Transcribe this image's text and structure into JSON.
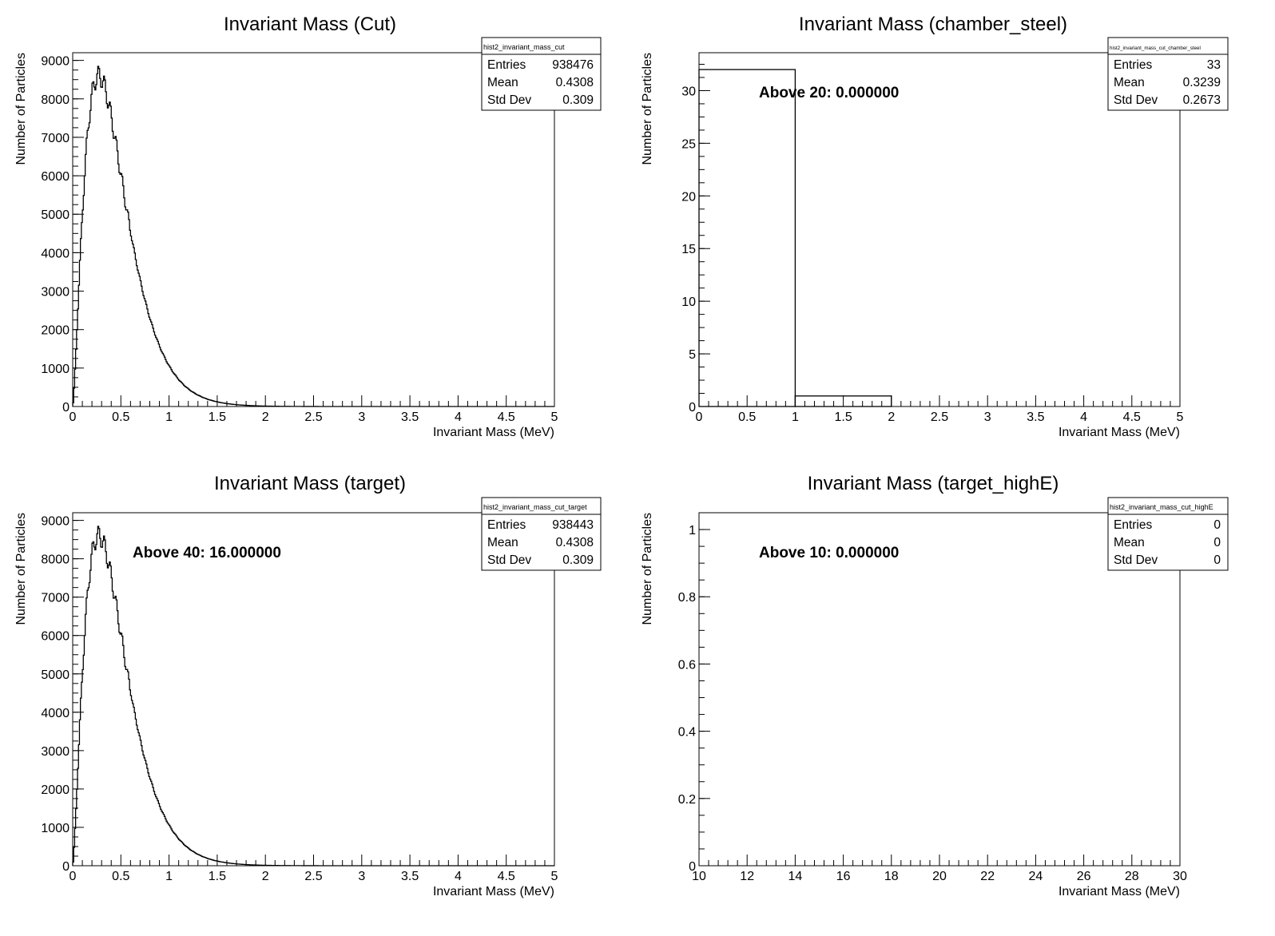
{
  "colors": {
    "line": "#000000",
    "background": "#ffffff"
  },
  "chart_data": [
    {
      "type": "histogram",
      "title": "Invariant Mass (Cut)",
      "xlabel": "Invariant Mass (MeV)",
      "ylabel": "Number of Particles",
      "xlim": [
        0,
        5
      ],
      "ylim": [
        0,
        9200
      ],
      "x_ticks": [
        "0",
        "0.5",
        "1",
        "1.5",
        "2",
        "2.5",
        "3",
        "3.5",
        "4",
        "4.5",
        "5"
      ],
      "y_ticks": [
        "0",
        "1000",
        "2000",
        "3000",
        "4000",
        "5000",
        "6000",
        "7000",
        "8000",
        "9000"
      ],
      "stats": {
        "name": "hist2_invariant_mass_cut",
        "rows": [
          {
            "label": "Entries",
            "value": "938476"
          },
          {
            "label": "Mean",
            "value": "0.4308"
          },
          {
            "label": "Std Dev",
            "value": "0.309"
          }
        ]
      },
      "annotation": "",
      "curve": {
        "shape": "gamma",
        "peak_x": 0.27,
        "peak_y": 8600,
        "k": 2.5,
        "theta": 0.18
      }
    },
    {
      "type": "histogram",
      "title": "Invariant Mass (chamber_steel)",
      "xlabel": "Invariant Mass (MeV)",
      "ylabel": "Number of Particles",
      "xlim": [
        0,
        5
      ],
      "ylim": [
        0,
        33.6
      ],
      "x_ticks": [
        "0",
        "0.5",
        "1",
        "1.5",
        "2",
        "2.5",
        "3",
        "3.5",
        "4",
        "4.5",
        "5"
      ],
      "y_ticks": [
        "0",
        "5",
        "10",
        "15",
        "20",
        "25",
        "30"
      ],
      "stats": {
        "name": "hist2_invariant_mass_cut_chamber_steel",
        "rows": [
          {
            "label": "Entries",
            "value": "33"
          },
          {
            "label": "Mean",
            "value": "0.3239"
          },
          {
            "label": "Std Dev",
            "value": "0.2673"
          }
        ]
      },
      "annotation": "Above 20: 0.000000",
      "bins": [
        {
          "x0": 0,
          "x1": 1,
          "y": 32
        },
        {
          "x0": 1,
          "x1": 2,
          "y": 1
        }
      ]
    },
    {
      "type": "histogram",
      "title": "Invariant Mass (target)",
      "xlabel": "Invariant Mass (MeV)",
      "ylabel": "Number of Particles",
      "xlim": [
        0,
        5
      ],
      "ylim": [
        0,
        9200
      ],
      "x_ticks": [
        "0",
        "0.5",
        "1",
        "1.5",
        "2",
        "2.5",
        "3",
        "3.5",
        "4",
        "4.5",
        "5"
      ],
      "y_ticks": [
        "0",
        "1000",
        "2000",
        "3000",
        "4000",
        "5000",
        "6000",
        "7000",
        "8000",
        "9000"
      ],
      "stats": {
        "name": "hist2_invariant_mass_cut_target",
        "rows": [
          {
            "label": "Entries",
            "value": "938443"
          },
          {
            "label": "Mean",
            "value": "0.4308"
          },
          {
            "label": "Std Dev",
            "value": "0.309"
          }
        ]
      },
      "annotation": "Above 40: 16.000000",
      "curve": {
        "shape": "gamma",
        "peak_x": 0.27,
        "peak_y": 8600,
        "k": 2.5,
        "theta": 0.18
      }
    },
    {
      "type": "histogram",
      "title": "Invariant Mass (target_highE)",
      "xlabel": "Invariant Mass (MeV)",
      "ylabel": "Number of Particles",
      "xlim": [
        10,
        30
      ],
      "ylim": [
        0,
        1.05
      ],
      "x_ticks": [
        "10",
        "12",
        "14",
        "16",
        "18",
        "20",
        "22",
        "24",
        "26",
        "28",
        "30"
      ],
      "y_ticks": [
        "0",
        "0.2",
        "0.4",
        "0.6",
        "0.8",
        "1"
      ],
      "stats": {
        "name": "hist2_invariant_mass_cut_highE",
        "rows": [
          {
            "label": "Entries",
            "value": "0"
          },
          {
            "label": "Mean",
            "value": "0"
          },
          {
            "label": "Std Dev",
            "value": "0"
          }
        ]
      },
      "annotation": "Above 10: 0.000000",
      "bins": []
    }
  ]
}
